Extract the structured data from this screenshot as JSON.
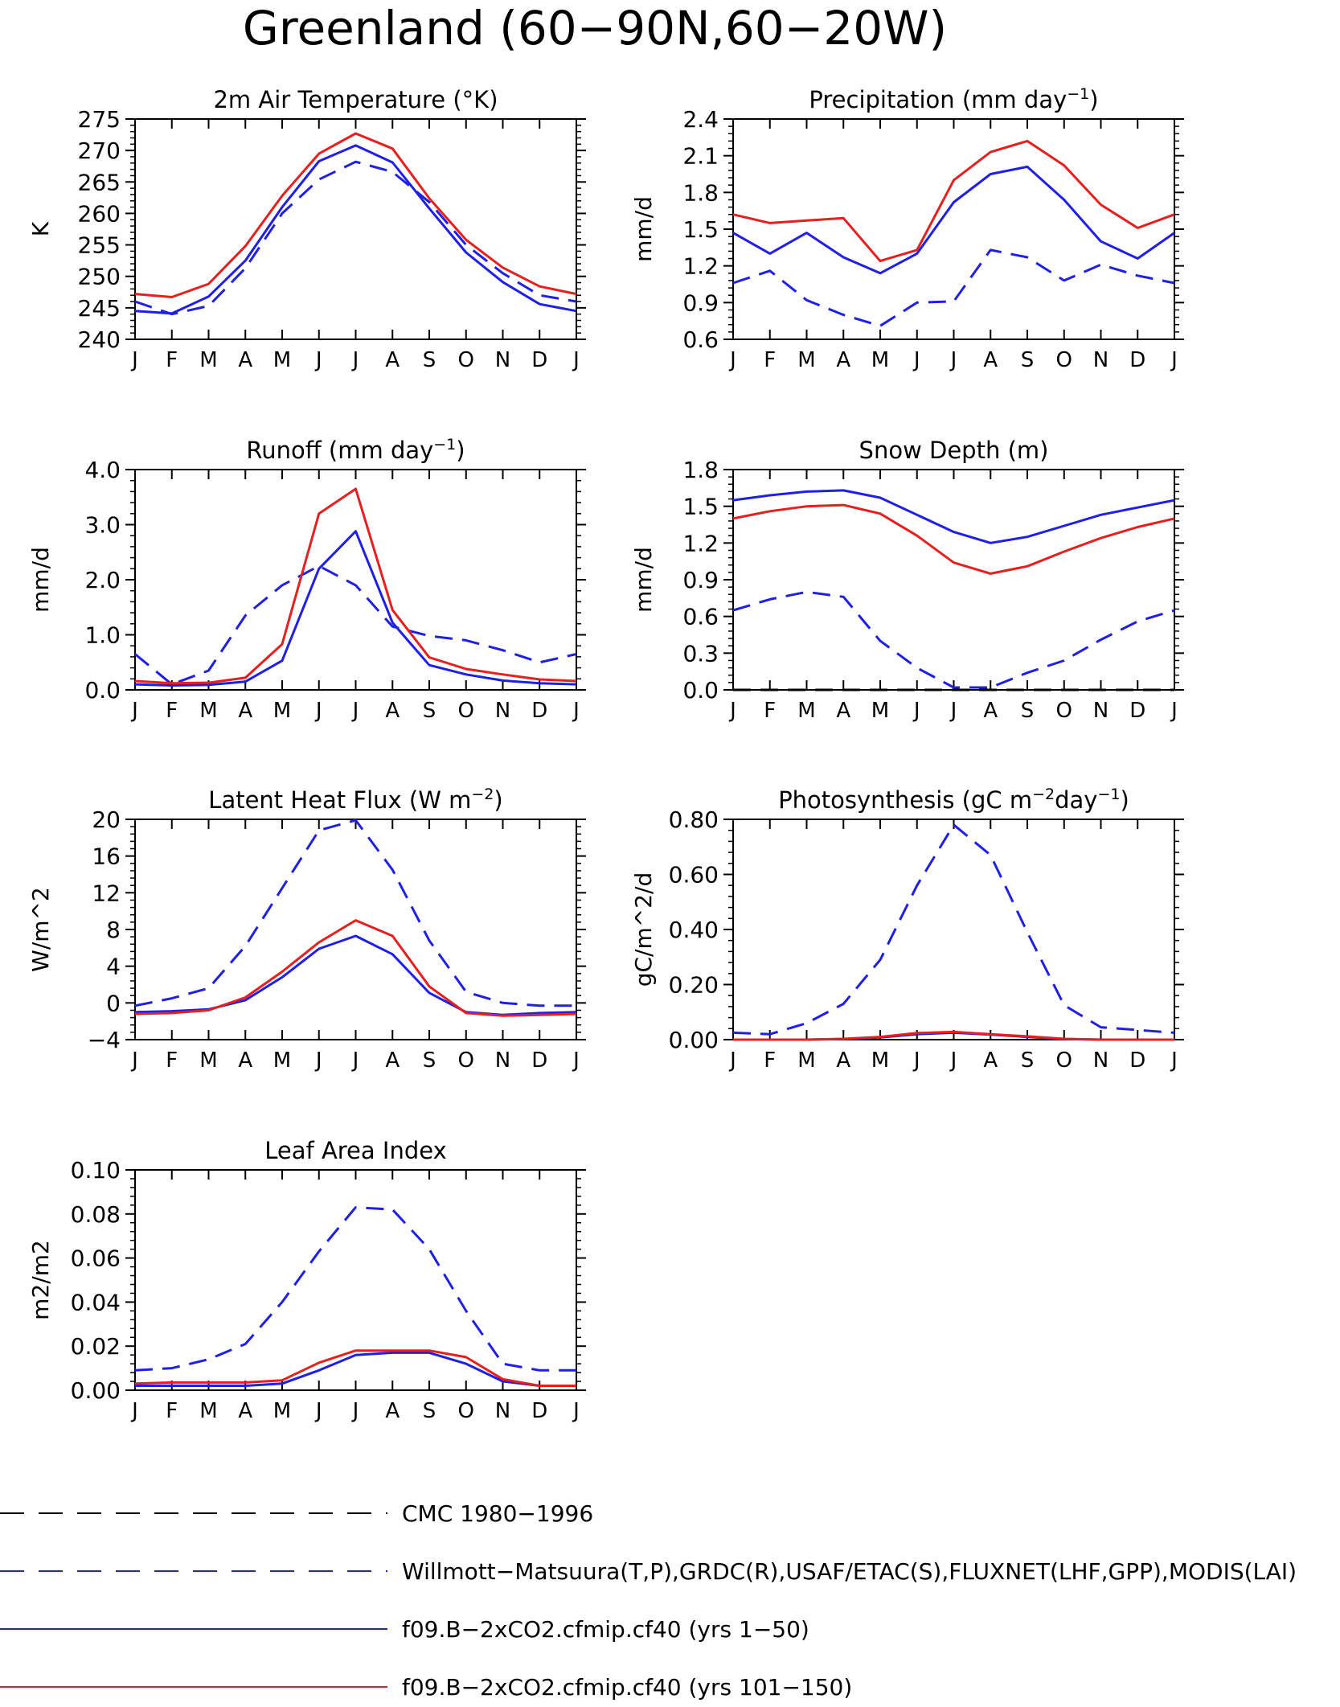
{
  "figure": {
    "title": "Greenland (60−90N,60−20W)",
    "months": [
      "J",
      "F",
      "M",
      "A",
      "M",
      "J",
      "J",
      "A",
      "S",
      "O",
      "N",
      "D",
      "J"
    ]
  },
  "colors": {
    "obs": "#1f1fe6",
    "model1": "#1f1fe6",
    "model2": "#e61f1f",
    "cmc": "#000000"
  },
  "legend": [
    {
      "label": "CMC 1980−1996",
      "color": "#000000",
      "dash": true
    },
    {
      "label": "Willmott−Matsuura(T,P),GRDC(R),USAF/ETAC(S),FLUXNET(LHF,GPP),MODIS(LAI)",
      "color": "#1f1fe6",
      "dash": true
    },
    {
      "label": "f09.B−2xCO2.cfmip.cf40 (yrs 1−50)",
      "color": "#1f1fe6",
      "dash": false
    },
    {
      "label": "f09.B−2xCO2.cfmip.cf40 (yrs 101−150)",
      "color": "#e61f1f",
      "dash": false
    }
  ],
  "chart_data": [
    {
      "type": "line",
      "title": "2m Air Temperature (°K)",
      "ylabel": "K",
      "ylim": [
        240,
        275
      ],
      "yticks": [
        "240",
        "245",
        "250",
        "255",
        "260",
        "265",
        "270",
        "275"
      ],
      "x": [
        "J",
        "F",
        "M",
        "A",
        "M",
        "J",
        "J",
        "A",
        "S",
        "O",
        "N",
        "D",
        "J"
      ],
      "series": [
        {
          "role": "obs",
          "values": [
            246.0,
            244.0,
            245.3,
            251.3,
            260.0,
            265.4,
            268.2,
            266.6,
            261.8,
            255.0,
            250.5,
            247.0,
            246.0
          ]
        },
        {
          "role": "model1",
          "values": [
            244.5,
            244.1,
            246.8,
            252.5,
            261.0,
            268.3,
            270.8,
            268.1,
            260.8,
            253.8,
            249.1,
            245.6,
            244.5
          ]
        },
        {
          "role": "model2",
          "values": [
            247.2,
            246.7,
            248.8,
            254.8,
            262.8,
            269.5,
            272.7,
            270.3,
            262.4,
            255.8,
            251.4,
            248.4,
            247.2
          ]
        }
      ]
    },
    {
      "type": "line",
      "title": "Precipitation (mm day",
      "title_sup": "−1",
      "title_end": ")",
      "ylabel": "mm/d",
      "ylim": [
        0.6,
        2.4
      ],
      "yticks": [
        "0.6",
        "0.9",
        "1.2",
        "1.5",
        "1.8",
        "2.1",
        "2.4"
      ],
      "x": [
        "J",
        "F",
        "M",
        "A",
        "M",
        "J",
        "J",
        "A",
        "S",
        "O",
        "N",
        "D",
        "J"
      ],
      "series": [
        {
          "role": "obs",
          "values": [
            1.06,
            1.16,
            0.92,
            0.8,
            0.71,
            0.9,
            0.91,
            1.33,
            1.27,
            1.08,
            1.21,
            1.12,
            1.06
          ]
        },
        {
          "role": "model1",
          "values": [
            1.47,
            1.3,
            1.47,
            1.27,
            1.14,
            1.3,
            1.72,
            1.95,
            2.01,
            1.74,
            1.4,
            1.26,
            1.47
          ]
        },
        {
          "role": "model2",
          "values": [
            1.62,
            1.55,
            1.57,
            1.59,
            1.24,
            1.33,
            1.9,
            2.13,
            2.22,
            2.02,
            1.7,
            1.51,
            1.62
          ]
        }
      ]
    },
    {
      "type": "line",
      "title": "Runoff (mm day",
      "title_sup": "−1",
      "title_end": ")",
      "ylabel": "mm/d",
      "ylim": [
        0.0,
        4.0
      ],
      "yticks": [
        "0.0",
        "1.0",
        "2.0",
        "3.0",
        "4.0"
      ],
      "x": [
        "J",
        "F",
        "M",
        "A",
        "M",
        "J",
        "J",
        "A",
        "S",
        "O",
        "N",
        "D",
        "J"
      ],
      "series": [
        {
          "role": "obs",
          "values": [
            0.65,
            0.1,
            0.35,
            1.35,
            1.9,
            2.25,
            1.9,
            1.15,
            0.98,
            0.9,
            0.72,
            0.5,
            0.65
          ]
        },
        {
          "role": "model1",
          "values": [
            0.1,
            0.08,
            0.09,
            0.15,
            0.53,
            2.2,
            2.88,
            1.22,
            0.45,
            0.28,
            0.17,
            0.12,
            0.1
          ]
        },
        {
          "role": "model2",
          "values": [
            0.16,
            0.12,
            0.13,
            0.22,
            0.83,
            3.2,
            3.65,
            1.45,
            0.59,
            0.38,
            0.28,
            0.19,
            0.16
          ]
        }
      ]
    },
    {
      "type": "line",
      "title": "Snow Depth (m)",
      "ylabel": "mm/d",
      "ylim": [
        0.0,
        1.8
      ],
      "yticks": [
        "0.0",
        "0.3",
        "0.6",
        "0.9",
        "1.2",
        "1.5",
        "1.8"
      ],
      "x": [
        "J",
        "F",
        "M",
        "A",
        "M",
        "J",
        "J",
        "A",
        "S",
        "O",
        "N",
        "D",
        "J"
      ],
      "series": [
        {
          "role": "cmc",
          "values": [
            0.0,
            0.0,
            0.0,
            0.0,
            0.0,
            0.0,
            0.0,
            0.0,
            0.0,
            0.0,
            0.0,
            0.0,
            0.0
          ]
        },
        {
          "role": "obs",
          "values": [
            0.65,
            0.74,
            0.8,
            0.76,
            0.4,
            0.18,
            0.02,
            0.02,
            0.14,
            0.24,
            0.41,
            0.56,
            0.65
          ]
        },
        {
          "role": "model1",
          "values": [
            1.55,
            1.59,
            1.62,
            1.63,
            1.57,
            1.43,
            1.29,
            1.2,
            1.25,
            1.34,
            1.43,
            1.49,
            1.55
          ]
        },
        {
          "role": "model2",
          "values": [
            1.4,
            1.46,
            1.5,
            1.51,
            1.44,
            1.26,
            1.04,
            0.95,
            1.01,
            1.13,
            1.24,
            1.33,
            1.4
          ]
        }
      ]
    },
    {
      "type": "line",
      "title": "Latent Heat Flux (W m",
      "title_sup": "−2",
      "title_end": ")",
      "ylabel": "W/m^2",
      "ylim": [
        -4,
        20
      ],
      "yticks": [
        "−4",
        "0",
        "4",
        "8",
        "12",
        "16",
        "20"
      ],
      "x": [
        "J",
        "F",
        "M",
        "A",
        "M",
        "J",
        "J",
        "A",
        "S",
        "O",
        "N",
        "D",
        "J"
      ],
      "series": [
        {
          "role": "obs",
          "values": [
            -0.3,
            0.5,
            1.6,
            6.2,
            12.5,
            18.8,
            19.9,
            14.5,
            6.8,
            1.2,
            0.0,
            -0.3,
            -0.3
          ]
        },
        {
          "role": "model1",
          "values": [
            -1.0,
            -0.9,
            -0.7,
            0.3,
            2.8,
            5.9,
            7.3,
            5.3,
            1.1,
            -1.0,
            -1.3,
            -1.1,
            -1.0
          ]
        },
        {
          "role": "model2",
          "values": [
            -1.2,
            -1.1,
            -0.8,
            0.6,
            3.4,
            6.6,
            9.0,
            7.3,
            1.8,
            -1.1,
            -1.4,
            -1.3,
            -1.2
          ]
        }
      ]
    },
    {
      "type": "line",
      "title": "Photosynthesis (gC m",
      "title_sup": "−2",
      "title_mid": "day",
      "title_sup2": "−1",
      "title_end": ")",
      "ylabel": "gC/m^2/d",
      "ylim": [
        0.0,
        0.8
      ],
      "yticks": [
        "0.00",
        "0.20",
        "0.40",
        "0.60",
        "0.80"
      ],
      "x": [
        "J",
        "F",
        "M",
        "A",
        "M",
        "J",
        "J",
        "A",
        "S",
        "O",
        "N",
        "D",
        "J"
      ],
      "series": [
        {
          "role": "obs",
          "values": [
            0.025,
            0.02,
            0.06,
            0.13,
            0.29,
            0.56,
            0.78,
            0.67,
            0.39,
            0.125,
            0.045,
            0.035,
            0.025
          ]
        },
        {
          "role": "model1",
          "values": [
            0.0,
            0.0,
            0.0,
            0.002,
            0.008,
            0.02,
            0.025,
            0.018,
            0.01,
            0.002,
            0.0,
            0.0,
            0.0
          ]
        },
        {
          "role": "model2",
          "values": [
            0.0,
            0.0,
            0.0,
            0.003,
            0.01,
            0.024,
            0.028,
            0.02,
            0.012,
            0.003,
            0.0,
            0.0,
            0.0
          ]
        }
      ]
    },
    {
      "type": "line",
      "title": "Leaf Area Index",
      "ylabel": "m2/m2",
      "ylim": [
        0.0,
        0.1
      ],
      "yticks": [
        "0.00",
        "0.02",
        "0.04",
        "0.06",
        "0.08",
        "0.10"
      ],
      "x": [
        "J",
        "F",
        "M",
        "A",
        "M",
        "J",
        "J",
        "A",
        "S",
        "O",
        "N",
        "D",
        "J"
      ],
      "series": [
        {
          "role": "obs",
          "values": [
            0.009,
            0.01,
            0.014,
            0.021,
            0.04,
            0.063,
            0.083,
            0.082,
            0.064,
            0.036,
            0.012,
            0.009,
            0.009
          ]
        },
        {
          "role": "model1",
          "values": [
            0.002,
            0.002,
            0.002,
            0.002,
            0.003,
            0.009,
            0.016,
            0.017,
            0.017,
            0.012,
            0.004,
            0.002,
            0.002
          ]
        },
        {
          "role": "model2",
          "values": [
            0.003,
            0.0035,
            0.0035,
            0.0035,
            0.0045,
            0.0125,
            0.018,
            0.018,
            0.018,
            0.015,
            0.005,
            0.002,
            0.002
          ]
        }
      ]
    }
  ]
}
